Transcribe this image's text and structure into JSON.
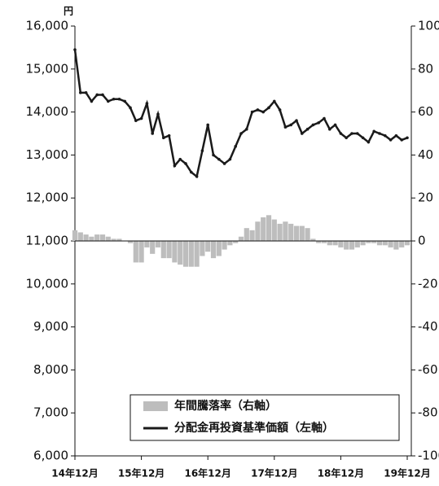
{
  "chart_data": {
    "type": "combo",
    "y_unit": "円",
    "categories": [
      "14年12月",
      null,
      null,
      null,
      null,
      null,
      null,
      null,
      null,
      null,
      null,
      null,
      "15年12月",
      null,
      null,
      null,
      null,
      null,
      null,
      null,
      null,
      null,
      null,
      null,
      "16年12月",
      null,
      null,
      null,
      null,
      null,
      null,
      null,
      null,
      null,
      null,
      null,
      "17年12月",
      null,
      null,
      null,
      null,
      null,
      null,
      null,
      null,
      null,
      null,
      null,
      "18年12月",
      null,
      null,
      null,
      null,
      null,
      null,
      null,
      null,
      null,
      null,
      null,
      "19年12月"
    ],
    "ylim": [
      6000,
      16000
    ],
    "yticks": [
      {
        "value": 6000,
        "label": "6,000"
      },
      {
        "value": 7000,
        "label": "7,000"
      },
      {
        "value": 8000,
        "label": "8,000"
      },
      {
        "value": 9000,
        "label": "9,000"
      },
      {
        "value": 10000,
        "label": "10,000"
      },
      {
        "value": 11000,
        "label": "11,000"
      },
      {
        "value": 12000,
        "label": "12,000"
      },
      {
        "value": 13000,
        "label": "13,000"
      },
      {
        "value": 14000,
        "label": "14,000"
      },
      {
        "value": 15000,
        "label": "15,000"
      },
      {
        "value": 16000,
        "label": "16,000"
      }
    ],
    "y2lim": [
      -100,
      100
    ],
    "y2ticks": [
      -100,
      -80,
      -60,
      -40,
      -20,
      0,
      20,
      40,
      60,
      80,
      100
    ],
    "series": [
      {
        "name": "年間騰落率（右軸）",
        "type": "bar",
        "axis": "y2",
        "color": "#bdbdbd",
        "values": [
          5,
          4,
          3,
          2,
          3,
          3,
          2,
          1,
          1,
          0,
          -1,
          -10,
          -10,
          -3,
          -6,
          -3,
          -8,
          -8,
          -10,
          -11,
          -12,
          -12,
          -12,
          -7,
          -5,
          -8,
          -7,
          -4,
          -2,
          -1,
          2,
          6,
          5,
          9,
          11,
          12,
          10,
          8,
          9,
          8,
          7,
          7,
          6,
          1,
          -1,
          -1,
          -2,
          -2,
          -3,
          -4,
          -4,
          -3,
          -2,
          -1,
          -1,
          -2,
          -2,
          -3,
          -4,
          -3,
          -2
        ]
      },
      {
        "name": "分配金再投資基準価額（左軸）",
        "type": "line",
        "color": "#1a1a1a",
        "values": [
          15450,
          14450,
          14450,
          14250,
          14400,
          14400,
          14250,
          14300,
          14300,
          14250,
          14100,
          13800,
          13850,
          14200,
          13500,
          13950,
          13400,
          13450,
          12750,
          12900,
          12800,
          12600,
          12500,
          13100,
          13700,
          13000,
          12900,
          12800,
          12900,
          13200,
          13500,
          13600,
          14000,
          14050,
          14000,
          14100,
          14250,
          14050,
          13650,
          13700,
          13800,
          13500,
          13600,
          13700,
          13750,
          13850,
          13600,
          13700,
          13500,
          13400,
          13500,
          13500,
          13400,
          13300,
          13550,
          13500,
          13450,
          13350,
          13450,
          13350,
          13400
        ]
      }
    ]
  }
}
